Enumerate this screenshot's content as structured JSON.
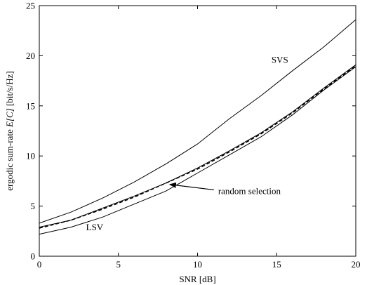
{
  "chart_data": {
    "type": "line",
    "title": "",
    "xlabel": "SNR [dB]",
    "ylabel_prefix": "ergodic sum-rate ",
    "ylabel_math": "E[C]",
    "ylabel_suffix": "  [bit/s/Hz]",
    "xlim": [
      0,
      20
    ],
    "ylim": [
      0,
      25
    ],
    "x_ticks": [
      0,
      5,
      10,
      15,
      20
    ],
    "y_ticks": [
      0,
      5,
      10,
      15,
      20,
      25
    ],
    "grid": false,
    "series": [
      {
        "style": "solid",
        "color": "#000000",
        "x": [
          0,
          2,
          4,
          6,
          8,
          10,
          12,
          14,
          16,
          18,
          20
        ],
        "y": [
          3.3,
          4.4,
          5.8,
          7.4,
          9.2,
          11.2,
          13.7,
          16.0,
          18.5,
          20.9,
          23.6
        ]
      },
      {
        "style": "solid",
        "color": "#000000",
        "x": [
          0,
          2,
          4,
          6,
          8,
          10,
          12,
          14,
          16,
          18,
          20
        ],
        "y": [
          2.9,
          3.6,
          4.8,
          6.0,
          7.3,
          8.8,
          10.5,
          12.3,
          14.4,
          16.8,
          19.1
        ]
      },
      {
        "style": "dashed",
        "color": "#000000",
        "x": [
          0,
          2,
          4,
          6,
          8,
          10,
          12,
          14,
          16,
          18,
          20
        ],
        "y": [
          2.8,
          3.6,
          4.7,
          5.9,
          7.3,
          8.7,
          10.4,
          12.2,
          14.3,
          16.7,
          19.0
        ]
      },
      {
        "style": "solid",
        "color": "#000000",
        "x": [
          0,
          2,
          4,
          6,
          8,
          10,
          12,
          14,
          16,
          18,
          20
        ],
        "y": [
          2.2,
          2.9,
          3.9,
          5.2,
          6.5,
          8.3,
          10.1,
          11.9,
          14.1,
          16.6,
          18.9
        ]
      }
    ],
    "annotations": [
      {
        "name": "svs",
        "text": "SVS",
        "x": 15.2,
        "y": 19.3
      },
      {
        "name": "random-selection",
        "text": "random selection",
        "x": 11.3,
        "y": 6.2,
        "arrow_to": [
          8.2,
          7.3
        ]
      },
      {
        "name": "lsv",
        "text": "LSV",
        "x": 3.5,
        "y": 2.6
      }
    ]
  }
}
